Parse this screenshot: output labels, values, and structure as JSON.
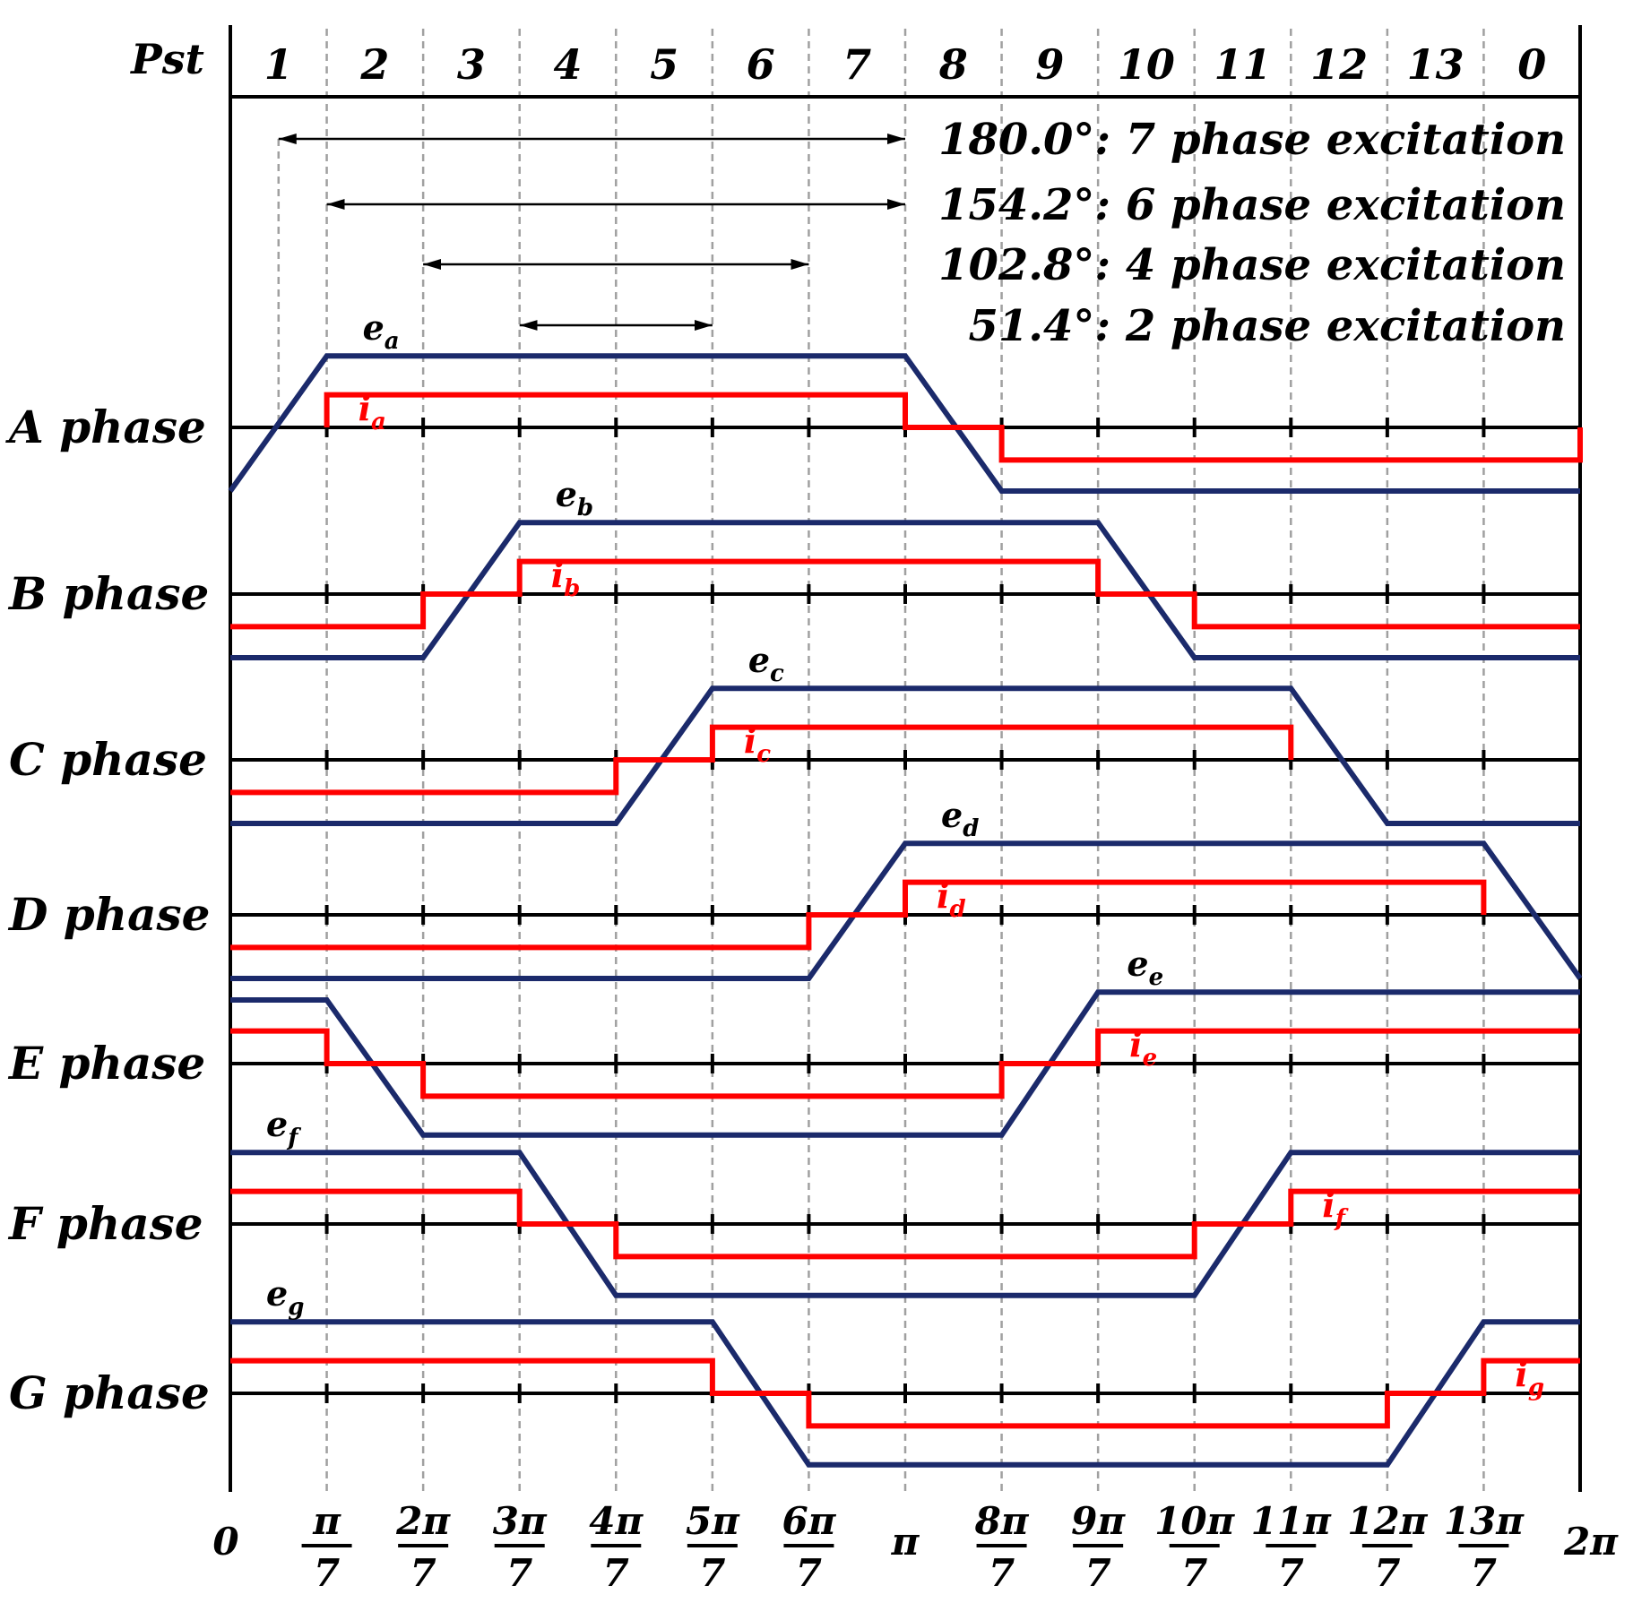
{
  "header": {
    "label": "Pst",
    "positions": [
      "1",
      "2",
      "3",
      "4",
      "5",
      "6",
      "7",
      "8",
      "9",
      "10",
      "11",
      "12",
      "13",
      "0"
    ]
  },
  "excitation": [
    {
      "label": "180.0°: 7 phase excitation",
      "from": 0.5,
      "to": 7
    },
    {
      "label": "154.2°: 6 phase excitation",
      "from": 1,
      "to": 7
    },
    {
      "label": "102.8°: 4 phase excitation",
      "from": 2,
      "to": 6
    },
    {
      "label": "51.4°: 2 phase excitation",
      "from": 3,
      "to": 5
    }
  ],
  "phases": [
    {
      "name": "A phase",
      "emf": "e",
      "emf_sub": "a",
      "cur": "i",
      "cur_sub": "a",
      "emf_points": [
        [
          0,
          -0.89
        ],
        [
          1,
          1
        ],
        [
          7,
          1
        ],
        [
          8,
          -0.89
        ],
        [
          14,
          -0.89
        ]
      ],
      "cur_points": [
        [
          1,
          0
        ],
        [
          1,
          0.55
        ],
        [
          7,
          0.55
        ],
        [
          7,
          0
        ],
        [
          8,
          0
        ],
        [
          8,
          -0.55
        ],
        [
          14,
          -0.55
        ],
        [
          14,
          0
        ]
      ]
    },
    {
      "name": "B phase",
      "emf": "e",
      "emf_sub": "b",
      "cur": "i",
      "cur_sub": "b",
      "emf_points": [
        [
          0,
          -0.89
        ],
        [
          2,
          -0.89
        ],
        [
          3,
          1
        ],
        [
          9,
          1
        ],
        [
          10,
          -0.89
        ],
        [
          14,
          -0.89
        ]
      ],
      "cur_points": [
        [
          0,
          -0.55
        ],
        [
          2,
          -0.55
        ],
        [
          2,
          0
        ],
        [
          3,
          0
        ],
        [
          3,
          0.55
        ],
        [
          9,
          0.55
        ],
        [
          9,
          0
        ],
        [
          10,
          0
        ],
        [
          10,
          -0.55
        ],
        [
          14,
          -0.55
        ]
      ]
    },
    {
      "name": "C phase",
      "emf": "e",
      "emf_sub": "c",
      "cur": "i",
      "cur_sub": "c",
      "emf_points": [
        [
          0,
          -0.89
        ],
        [
          4,
          -0.89
        ],
        [
          5,
          1
        ],
        [
          11,
          1
        ],
        [
          12,
          -0.89
        ],
        [
          14,
          -0.89
        ]
      ],
      "cur_points": [
        [
          0,
          -0.55
        ],
        [
          4,
          -0.55
        ],
        [
          4,
          0
        ],
        [
          5,
          0
        ],
        [
          5,
          0.55
        ],
        [
          11,
          0.55
        ],
        [
          11,
          0
        ]
      ]
    },
    {
      "name": "D phase",
      "emf": "e",
      "emf_sub": "d",
      "cur": "i",
      "cur_sub": "d",
      "emf_points": [
        [
          0,
          -0.89
        ],
        [
          6,
          -0.89
        ],
        [
          7,
          1
        ],
        [
          13,
          1
        ],
        [
          14,
          -0.89
        ]
      ],
      "cur_points": [
        [
          0,
          -0.55
        ],
        [
          6,
          -0.55
        ],
        [
          6,
          0
        ],
        [
          7,
          0
        ],
        [
          7,
          0.55
        ],
        [
          13,
          0.55
        ],
        [
          13,
          0
        ]
      ]
    },
    {
      "name": "E phase",
      "emf": "e",
      "emf_sub": "e",
      "cur": "i",
      "cur_sub": "e",
      "emf_points": [
        [
          0,
          0.89
        ],
        [
          1,
          0.89
        ],
        [
          2,
          -1
        ],
        [
          8,
          -1
        ],
        [
          9,
          1
        ],
        [
          14,
          1
        ]
      ],
      "cur_points": [
        [
          0,
          0.55
        ],
        [
          1,
          0.55
        ],
        [
          1,
          0
        ],
        [
          2,
          0
        ],
        [
          2,
          -0.55
        ],
        [
          8,
          -0.55
        ],
        [
          8,
          0
        ],
        [
          9,
          0
        ],
        [
          9,
          0.55
        ],
        [
          14,
          0.55
        ]
      ]
    },
    {
      "name": "F phase",
      "emf": "e",
      "emf_sub": "f",
      "cur": "i",
      "cur_sub": "f",
      "emf_points": [
        [
          0,
          1
        ],
        [
          3,
          1
        ],
        [
          4,
          -1
        ],
        [
          10,
          -1
        ],
        [
          11,
          1
        ],
        [
          14,
          1
        ]
      ],
      "cur_points": [
        [
          0,
          0.55
        ],
        [
          3,
          0.55
        ],
        [
          3,
          0
        ],
        [
          4,
          0
        ],
        [
          4,
          -0.55
        ],
        [
          10,
          -0.55
        ],
        [
          10,
          0
        ],
        [
          11,
          0
        ],
        [
          11,
          0.55
        ],
        [
          14,
          0.55
        ]
      ]
    },
    {
      "name": "G phase",
      "emf": "e",
      "emf_sub": "g",
      "cur": "i",
      "cur_sub": "g",
      "emf_points": [
        [
          0,
          1
        ],
        [
          5,
          1
        ],
        [
          6,
          -1
        ],
        [
          12,
          -1
        ],
        [
          13,
          1
        ],
        [
          14,
          1
        ]
      ],
      "cur_points": [
        [
          0,
          0.55
        ],
        [
          5,
          0.55
        ],
        [
          5,
          0
        ],
        [
          6,
          0
        ],
        [
          6,
          -0.55
        ],
        [
          12,
          -0.55
        ],
        [
          12,
          0
        ],
        [
          13,
          0
        ],
        [
          13,
          0.55
        ],
        [
          14,
          0.55
        ]
      ]
    }
  ],
  "x_axis": [
    {
      "num": "0"
    },
    {
      "num": "π",
      "den": "7"
    },
    {
      "num": "2π",
      "den": "7"
    },
    {
      "num": "3π",
      "den": "7"
    },
    {
      "num": "4π",
      "den": "7"
    },
    {
      "num": "5π",
      "den": "7"
    },
    {
      "num": "6π",
      "den": "7"
    },
    {
      "num": "π"
    },
    {
      "num": "8π",
      "den": "7"
    },
    {
      "num": "9π",
      "den": "7"
    },
    {
      "num": "10π",
      "den": "7"
    },
    {
      "num": "11π",
      "den": "7"
    },
    {
      "num": "12π",
      "den": "7"
    },
    {
      "num": "13π",
      "den": "7"
    },
    {
      "num": "2π"
    }
  ],
  "colors": {
    "emf": "#1b2a6b",
    "current": "#ff0000",
    "axis": "#000000",
    "grid": "#a0a0a0"
  }
}
